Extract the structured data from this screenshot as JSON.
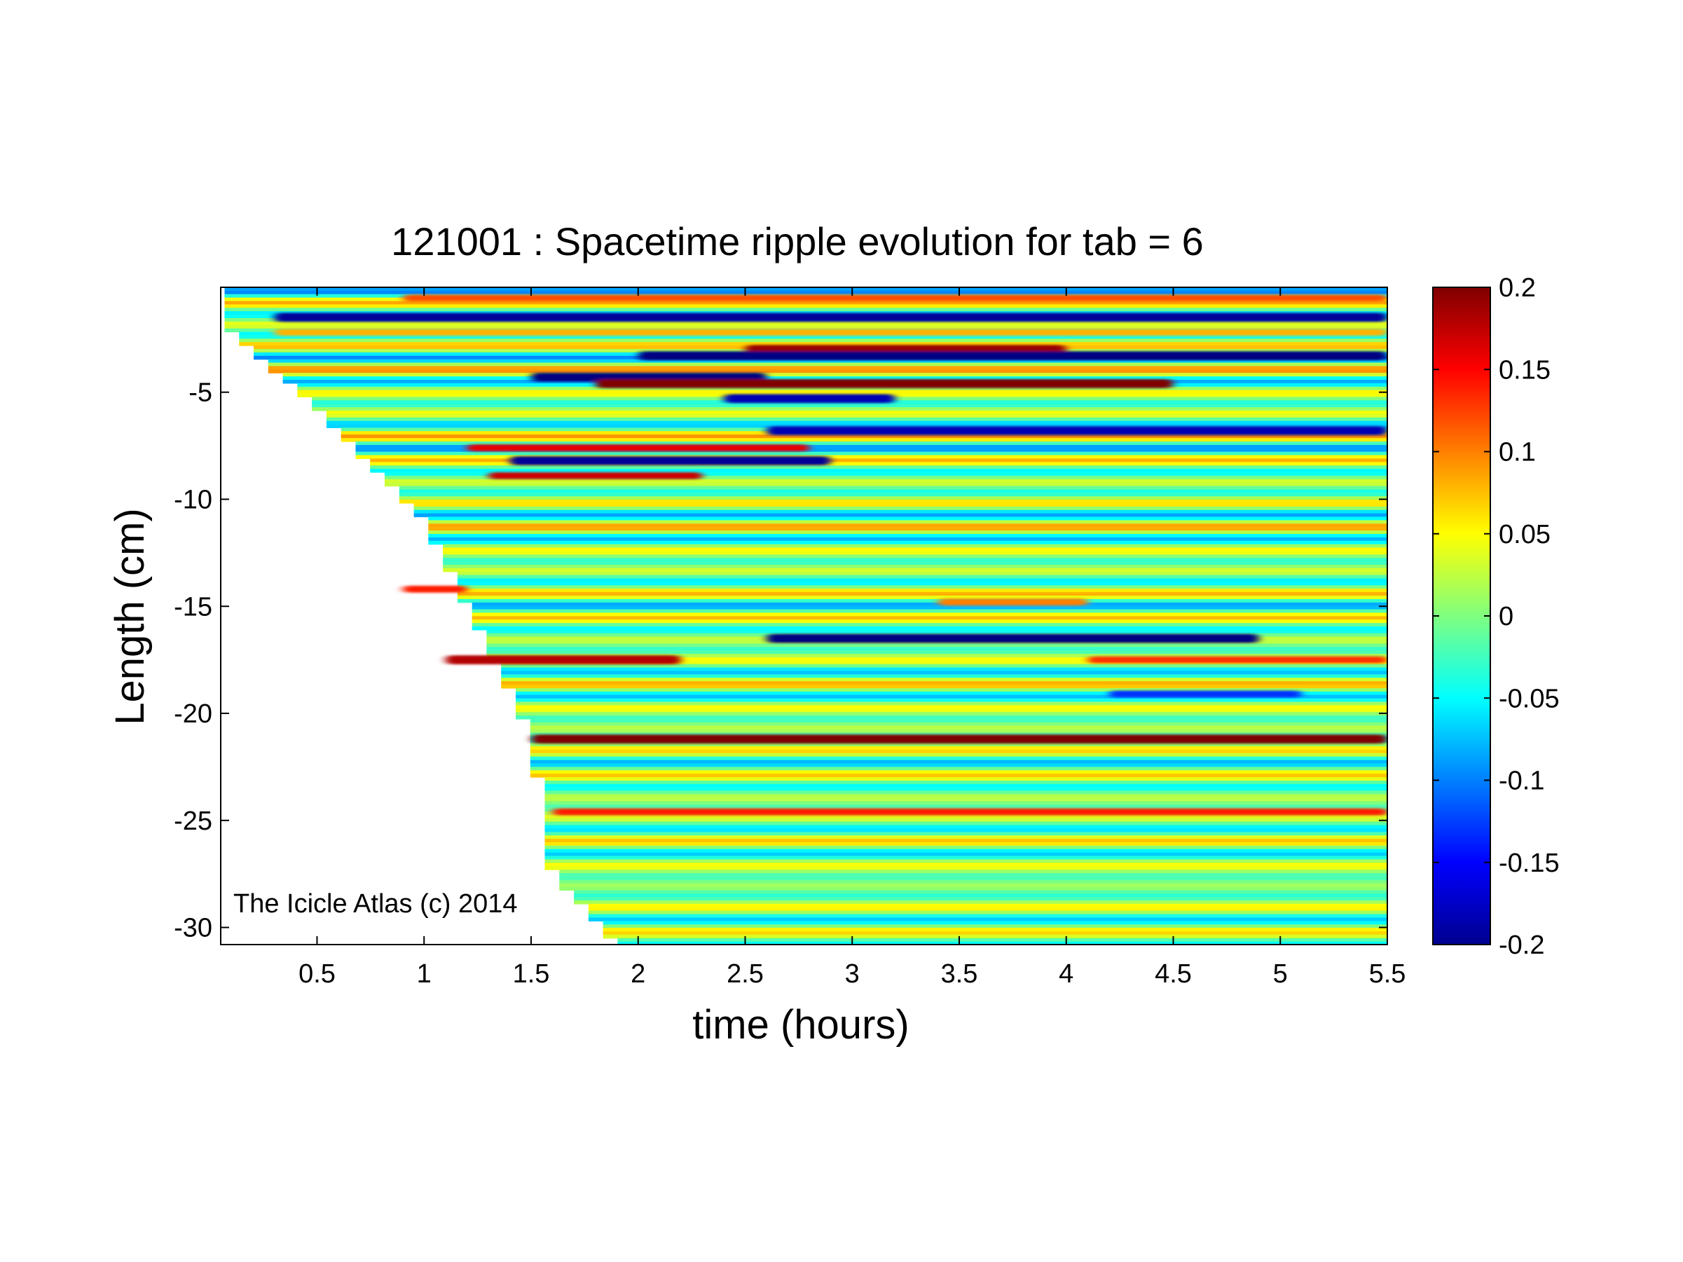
{
  "chart_data": {
    "type": "heatmap",
    "title": "121001 : Spacetime ripple evolution for tab = 6",
    "xlabel": "time (hours)",
    "ylabel": "Length (cm)",
    "xlim": [
      0.05,
      5.5
    ],
    "ylim": [
      -30.8,
      -0.1
    ],
    "x_ticks": [
      0.5,
      1,
      1.5,
      2,
      2.5,
      3,
      3.5,
      4,
      4.5,
      5,
      5.5
    ],
    "x_tick_labels": [
      "0.5",
      "1",
      "1.5",
      "2",
      "2.5",
      "3",
      "3.5",
      "4",
      "4.5",
      "5",
      "5.5"
    ],
    "y_ticks": [
      -5,
      -10,
      -15,
      -20,
      -25,
      -30
    ],
    "y_tick_labels": [
      "-5",
      "-10",
      "-15",
      "-20",
      "-25",
      "-30"
    ],
    "colorbar": {
      "colormap": "jet",
      "clim": [
        -0.2,
        0.2
      ],
      "ticks": [
        0.2,
        0.15,
        0.1,
        0.05,
        0,
        -0.05,
        -0.1,
        -0.15,
        -0.2
      ],
      "tick_labels": [
        "0.2",
        "0.15",
        "0.1",
        "0.05",
        "0",
        "-0.05",
        "-0.1",
        "-0.15",
        "-0.2"
      ]
    },
    "data_boundary": {
      "description_x_vs_length": [
        [
          0.05,
          -1.7
        ],
        [
          0.5,
          -5.8
        ],
        [
          1.0,
          -11.0
        ],
        [
          1.5,
          -21.0
        ],
        [
          1.6,
          -27.5
        ],
        [
          1.9,
          -30.8
        ]
      ]
    },
    "features": [
      {
        "y": -0.6,
        "x_start": 0.9,
        "x_end": 5.5,
        "value": 0.12
      },
      {
        "y": -1.5,
        "x_start": 0.3,
        "x_end": 5.5,
        "value": -0.19
      },
      {
        "y": -2.2,
        "x_start": 0.3,
        "x_end": 5.5,
        "value": 0.08
      },
      {
        "y": -3.0,
        "x_start": 2.5,
        "x_end": 4.0,
        "value": 0.19
      },
      {
        "y": -3.3,
        "x_start": 2.0,
        "x_end": 5.5,
        "value": -0.2
      },
      {
        "y": -4.3,
        "x_start": 1.5,
        "x_end": 2.6,
        "value": -0.2
      },
      {
        "y": -4.6,
        "x_start": 1.8,
        "x_end": 4.5,
        "value": 0.2
      },
      {
        "y": -5.3,
        "x_start": 2.4,
        "x_end": 3.2,
        "value": -0.18
      },
      {
        "y": -6.8,
        "x_start": 2.6,
        "x_end": 5.5,
        "value": -0.18
      },
      {
        "y": -7.6,
        "x_start": 1.2,
        "x_end": 2.8,
        "value": 0.16
      },
      {
        "y": -8.2,
        "x_start": 1.4,
        "x_end": 2.9,
        "value": -0.19
      },
      {
        "y": -8.9,
        "x_start": 1.3,
        "x_end": 2.3,
        "value": 0.17
      },
      {
        "y": -14.2,
        "x_start": 0.9,
        "x_end": 1.2,
        "value": 0.14
      },
      {
        "y": -14.8,
        "x_start": 3.4,
        "x_end": 4.1,
        "value": 0.1
      },
      {
        "y": -16.5,
        "x_start": 2.6,
        "x_end": 4.9,
        "value": -0.2
      },
      {
        "y": -17.5,
        "x_start": 1.1,
        "x_end": 2.2,
        "value": 0.18
      },
      {
        "y": -17.5,
        "x_start": 4.1,
        "x_end": 5.5,
        "value": 0.13
      },
      {
        "y": -19.1,
        "x_start": 4.2,
        "x_end": 5.1,
        "value": -0.13
      },
      {
        "y": -21.2,
        "x_start": 1.5,
        "x_end": 5.5,
        "value": 0.2
      },
      {
        "y": -24.6,
        "x_start": 1.6,
        "x_end": 5.5,
        "value": 0.14
      }
    ]
  },
  "annotation": "The Icicle Atlas (c) 2014"
}
